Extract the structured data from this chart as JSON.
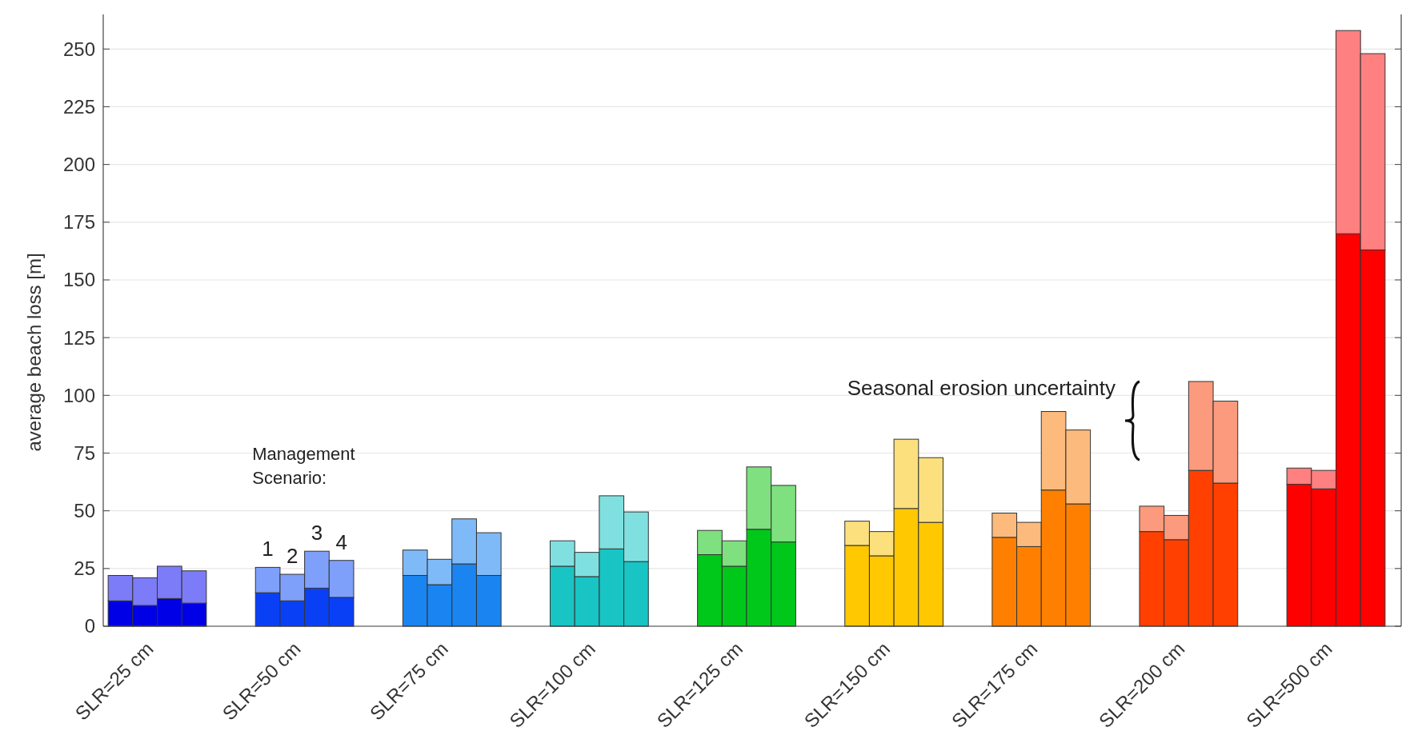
{
  "chart_data": {
    "type": "bar",
    "stacked": true,
    "ylabel": "average beach loss [m]",
    "categories": [
      null,
      "SLR=25 cm",
      null,
      null,
      null,
      null,
      null,
      "SLR=50 cm",
      null,
      null,
      null,
      null,
      null,
      "SLR=75 cm",
      null,
      null,
      null,
      null,
      null,
      "SLR=100 cm",
      null,
      null,
      null,
      null,
      null,
      "SLR=125 cm",
      null,
      null,
      null,
      null,
      null,
      "SLR=150 cm",
      null,
      null,
      null,
      null,
      null,
      "SLR=175 cm",
      null,
      null,
      null,
      null,
      null,
      "SLR=200 cm",
      null,
      null,
      null,
      null,
      null,
      "SLR=500 cm",
      null,
      null
    ],
    "series": [
      {
        "colors": [
          "#0000e6",
          "#0000e6",
          "#0000e6",
          "#0000e6",
          null,
          null,
          "#0a40f5",
          "#0a40f5",
          "#0a40f5",
          "#0a40f5",
          null,
          null,
          "#1a85f0",
          "#1a85f0",
          "#1a85f0",
          "#1a85f0",
          null,
          null,
          "#19c4c4",
          "#19c4c4",
          "#19c4c4",
          "#19c4c4",
          null,
          null,
          "#00c81a",
          "#00c81a",
          "#00c81a",
          "#00c81a",
          null,
          null,
          "#ffc800",
          "#ffc800",
          "#ffc800",
          "#ffc800",
          null,
          null,
          "#ff8000",
          "#ff8000",
          "#ff8000",
          "#ff8000",
          null,
          null,
          "#ff4000",
          "#ff4000",
          "#ff4000",
          "#ff4000",
          null,
          null,
          "#ff0000",
          "#ff0000",
          "#ff0000",
          "#ff0000"
        ],
        "values": [
          11,
          9,
          12,
          10,
          null,
          null,
          14.5,
          11,
          16.5,
          12.5,
          null,
          null,
          22,
          18,
          27,
          22,
          null,
          null,
          26,
          21.5,
          33.5,
          28,
          null,
          null,
          31,
          26,
          42,
          36.5,
          null,
          null,
          35,
          30.5,
          51,
          45,
          null,
          null,
          38.5,
          34.5,
          59,
          53,
          null,
          null,
          41,
          37.5,
          67.5,
          62,
          null,
          null,
          61.5,
          59.5,
          170,
          163
        ]
      },
      {
        "colors": [
          "#7c7cf8",
          "#7c7cf8",
          "#7c7cf8",
          "#7c7cf8",
          null,
          null,
          "#7fa0fa",
          "#7fa0fa",
          "#7fa0fa",
          "#7fa0fa",
          null,
          null,
          "#7fbaf8",
          "#7fbaf8",
          "#7fbaf8",
          "#7fbaf8",
          null,
          null,
          "#80e0e0",
          "#80e0e0",
          "#80e0e0",
          "#80e0e0",
          null,
          null,
          "#7ee07e",
          "#7ee07e",
          "#7ee07e",
          "#7ee07e",
          null,
          null,
          "#fce07e",
          "#fce07e",
          "#fce07e",
          "#fce07e",
          null,
          null,
          "#fcbb7c",
          "#fcbb7c",
          "#fcbb7c",
          "#fcbb7c",
          null,
          null,
          "#fb9a7c",
          "#fb9a7c",
          "#fb9a7c",
          "#fb9a7c",
          null,
          null,
          "#ff8080",
          "#ff8080",
          "#ff8080",
          "#ff8080"
        ],
        "values": [
          11,
          12,
          14,
          14,
          null,
          null,
          11,
          11.5,
          16,
          16,
          null,
          null,
          11,
          11,
          19.5,
          18.5,
          null,
          null,
          11,
          10.5,
          23,
          21.5,
          null,
          null,
          10.5,
          11,
          27,
          24.5,
          null,
          null,
          10.5,
          10.5,
          30,
          28,
          null,
          null,
          10.5,
          10.5,
          34,
          32,
          null,
          null,
          11,
          10.5,
          38.5,
          35.5,
          null,
          null,
          7,
          8,
          88,
          85
        ]
      }
    ],
    "ylim": [
      0,
      265
    ],
    "yticks": [
      0,
      25,
      50,
      75,
      100,
      125,
      150,
      175,
      200,
      225,
      250
    ],
    "grid": "y",
    "annotations": [
      "Management Scenario:",
      "1",
      "2",
      "3",
      "4",
      "Seasonal erosion uncertainty"
    ]
  }
}
